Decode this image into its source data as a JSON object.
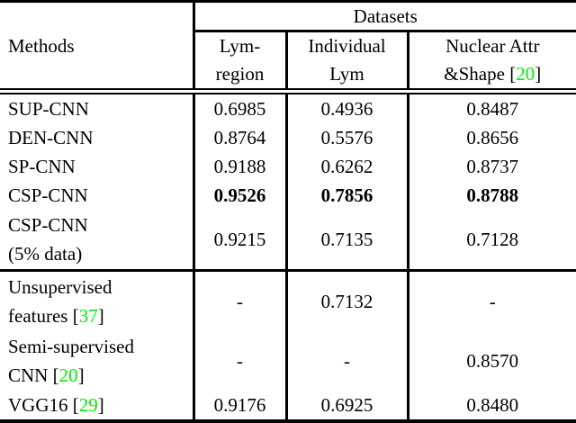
{
  "colors": {
    "text": "#000000",
    "background": "#ffffff",
    "reference_green": "#00ee00"
  },
  "table": {
    "methods_label": "Methods",
    "datasets_label": "Datasets",
    "dataset_columns": [
      {
        "lines": [
          "Lym-",
          "region"
        ]
      },
      {
        "lines": [
          "Individual",
          "Lym"
        ]
      },
      {
        "lines": [
          "Nuclear Attr",
          "&Shape [20]"
        ]
      }
    ],
    "rows": [
      {
        "method_lines": [
          "SUP-CNN"
        ],
        "values": [
          "0.6985",
          "0.4936",
          "0.8487"
        ]
      },
      {
        "method_lines": [
          "DEN-CNN"
        ],
        "values": [
          "0.8764",
          "0.5576",
          "0.8656"
        ]
      },
      {
        "method_lines": [
          "SP-CNN"
        ],
        "values": [
          "0.9188",
          "0.6262",
          "0.8737"
        ]
      },
      {
        "method_lines": [
          "CSP-CNN"
        ],
        "values": [
          "0.9526",
          "0.7856",
          "0.8788"
        ],
        "bold_values": true
      },
      {
        "method_lines": [
          "CSP-CNN",
          "(5% data)"
        ],
        "values": [
          "0.9215",
          "0.7135",
          "0.7128"
        ]
      },
      {
        "method_lines": [
          "Unsupervised",
          "features [37]"
        ],
        "values": [
          "-",
          "0.7132",
          "-"
        ],
        "section_start": true
      },
      {
        "method_lines": [
          "Semi-supervised",
          "CNN [20]"
        ],
        "values": [
          "-",
          "-",
          "0.8570"
        ]
      },
      {
        "method_lines": [
          "VGG16 [29]"
        ],
        "values": [
          "0.9176",
          "0.6925",
          "0.8480"
        ],
        "last_row": true
      }
    ]
  }
}
